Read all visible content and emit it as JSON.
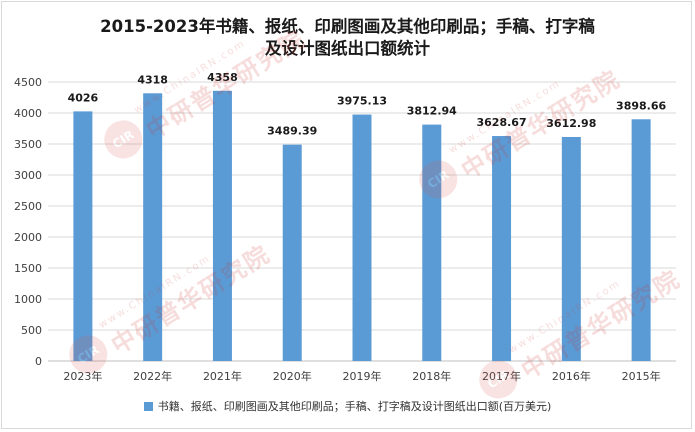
{
  "chart_data": {
    "type": "bar",
    "title_line1": "2015-2023年书籍、报纸、印刷图画及其他印刷品；手稿、打字稿",
    "title_line2": "及设计图纸出口额统计",
    "categories": [
      "2023年",
      "2022年",
      "2021年",
      "2020年",
      "2019年",
      "2018年",
      "2017年",
      "2016年",
      "2015年"
    ],
    "series": [
      {
        "name": "书籍、报纸、印刷图画及其他印刷品；手稿、打字稿及设计图纸出口额(百万美元)",
        "values": [
          4026,
          4318,
          4358,
          3489.39,
          3975.13,
          3812.94,
          3628.67,
          3612.98,
          3898.66
        ],
        "labels": [
          "4026",
          "4318",
          "4358",
          "3489.39",
          "3975.13",
          "3812.94",
          "3628.67",
          "3612.98",
          "3898.66"
        ]
      }
    ],
    "ylim": [
      0,
      4500
    ],
    "yticks": [
      0,
      500,
      1000,
      1500,
      2000,
      2500,
      3000,
      3500,
      4000,
      4500
    ],
    "xlabel": "",
    "ylabel": "",
    "grid": true,
    "legend_position": "bottom",
    "bar_color": "#5b9bd5",
    "grid_color": "#d9d9d9"
  },
  "watermark": {
    "logo": "CIR",
    "small": "www.ChinaIRN.com",
    "big": "中研普华研究院"
  }
}
